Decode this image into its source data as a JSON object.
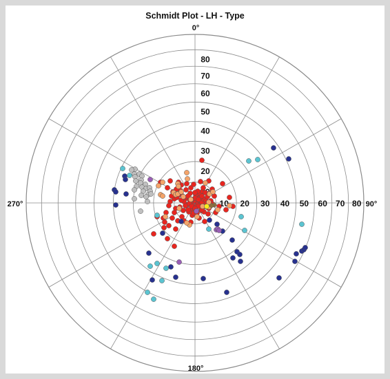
{
  "chart_data": {
    "type": "scatter",
    "projection": "schmidt-lower-hemisphere",
    "title": "Schmidt Plot - LH - Type",
    "direction_labels": {
      "north": "0°",
      "east": "90°",
      "south": "180°",
      "west": "270°"
    },
    "radial_tick_labels": [
      "10",
      "20",
      "30",
      "40",
      "50",
      "60",
      "70",
      "80"
    ],
    "axis_tick_labels": [
      "10",
      "20",
      "30",
      "40",
      "50",
      "60",
      "70",
      "80"
    ],
    "azimuth_gridlines_deg": [
      0,
      30,
      60,
      90,
      120,
      150,
      180,
      210,
      240,
      270,
      300,
      330
    ],
    "radial_rings_deg": [
      10,
      20,
      30,
      40,
      50,
      60,
      70,
      80,
      90
    ],
    "grid": true,
    "legend": "none",
    "series": [
      {
        "color": "#e8251f",
        "points": [
          [
            2,
            2
          ],
          [
            -2,
            3
          ],
          [
            4,
            -2
          ],
          [
            -4,
            -3
          ],
          [
            6,
            4
          ],
          [
            -6,
            2
          ],
          [
            3,
            7
          ],
          [
            -3,
            -7
          ],
          [
            8,
            -3
          ],
          [
            -8,
            5
          ],
          [
            5,
            9
          ],
          [
            -5,
            -9
          ],
          [
            10,
            1
          ],
          [
            -10,
            -2
          ],
          [
            12,
            6
          ],
          [
            -12,
            7
          ],
          [
            1,
            12
          ],
          [
            -1,
            -12
          ],
          [
            14,
            -5
          ],
          [
            -14,
            -4
          ],
          [
            7,
            14
          ],
          [
            -7,
            14
          ],
          [
            16,
            3
          ],
          [
            -16,
            2
          ],
          [
            9,
            -11
          ],
          [
            -9,
            -13
          ],
          [
            18,
            9
          ],
          [
            -18,
            10
          ],
          [
            4,
            17
          ],
          [
            -4,
            -18
          ],
          [
            11,
            17
          ],
          [
            -20,
            4
          ],
          [
            20,
            -8
          ],
          [
            -13,
            19
          ],
          [
            15,
            15
          ],
          [
            -22,
            -6
          ],
          [
            23,
            3
          ],
          [
            -6,
            22
          ],
          [
            6,
            -22
          ],
          [
            -24,
            12
          ],
          [
            2,
            -5
          ],
          [
            -2,
            -15
          ],
          [
            13,
            -13
          ],
          [
            -11,
            9
          ],
          [
            17,
            -1
          ],
          [
            -17,
            -11
          ],
          [
            0,
            7
          ],
          [
            8,
            8
          ],
          [
            -8,
            -1
          ],
          [
            3,
            -15
          ],
          [
            5,
            5
          ],
          [
            -5,
            5
          ],
          [
            5,
            -5
          ],
          [
            -5,
            -5
          ],
          [
            0,
            15
          ],
          [
            0,
            -8
          ],
          [
            10,
            10
          ],
          [
            -10,
            10
          ],
          [
            10,
            -10
          ],
          [
            -10,
            -10
          ],
          [
            21,
            14
          ],
          [
            -21,
            18
          ],
          [
            19,
            -16
          ],
          [
            -19,
            -20
          ],
          [
            26,
            -2
          ],
          [
            -27,
            20
          ],
          [
            -28,
            -8
          ],
          [
            -30,
            6
          ],
          [
            -32,
            16
          ],
          [
            -34,
            10
          ],
          [
            -36,
            2
          ],
          [
            -38,
            -4
          ],
          [
            -25,
            -26
          ],
          [
            -30,
            -14
          ],
          [
            -33,
            -22
          ],
          [
            -40,
            22
          ],
          [
            -44,
            -28
          ],
          [
            -20,
            26
          ],
          [
            -12,
            28
          ],
          [
            -24,
            30
          ],
          [
            -6,
            -28
          ],
          [
            14,
            -27
          ],
          [
            25,
            20
          ],
          [
            30,
            -14
          ],
          [
            -26,
            8
          ],
          [
            -36,
            32
          ],
          [
            -50,
            30
          ],
          [
            -28,
            -38
          ],
          [
            -40,
            -52
          ],
          [
            -60,
            -45
          ],
          [
            -30,
            -63
          ],
          [
            -55,
            -20
          ],
          [
            -45,
            -36
          ],
          [
            -38,
            -33
          ],
          [
            35,
            -5
          ],
          [
            45,
            -10
          ],
          [
            50,
            8
          ],
          [
            55,
            -5
          ],
          [
            10,
            62
          ],
          [
            40,
            28
          ],
          [
            8,
            31
          ],
          [
            -2,
            27
          ],
          [
            12,
            22
          ],
          [
            28,
            10
          ],
          [
            -42,
            -14
          ],
          [
            -46,
            -22
          ],
          [
            -16,
            -26
          ],
          [
            20,
            32
          ]
        ]
      },
      {
        "color": "#27318f",
        "points": [
          [
            -102,
            39
          ],
          [
            -101,
            34
          ],
          [
            -117,
            19
          ],
          [
            -100,
            13
          ],
          [
            -115,
            16
          ],
          [
            -115,
            -3
          ],
          [
            -20,
            -27
          ],
          [
            -47,
            -44
          ],
          [
            -67,
            -73
          ],
          [
            -35,
            -93
          ],
          [
            -62,
            -112
          ],
          [
            12,
            -110
          ],
          [
            46,
            -130
          ],
          [
            21,
            -25
          ],
          [
            32,
            -31
          ],
          [
            40,
            -41
          ],
          [
            54,
            -54
          ],
          [
            61,
            -71
          ],
          [
            65,
            -75
          ],
          [
            55,
            -80
          ],
          [
            66,
            -85
          ],
          [
            145,
            -85
          ],
          [
            147,
            -74
          ],
          [
            155,
            -70
          ],
          [
            158,
            -68
          ],
          [
            160,
            -65
          ],
          [
            122,
            -109
          ],
          [
            114,
            80
          ],
          [
            136,
            64
          ],
          [
            -28,
            -108
          ]
        ]
      },
      {
        "color": "#c0c0c0",
        "points": [
          [
            -87,
            49
          ],
          [
            -88,
            42
          ],
          [
            -92,
            48
          ],
          [
            -81,
            42
          ],
          [
            -87,
            38
          ],
          [
            -77,
            39
          ],
          [
            -78,
            33
          ],
          [
            -86,
            32
          ],
          [
            -79,
            29
          ],
          [
            -72,
            27
          ],
          [
            -85,
            24
          ],
          [
            -77,
            23
          ],
          [
            -88,
            19
          ],
          [
            -71,
            21
          ],
          [
            -75,
            17
          ],
          [
            -66,
            22
          ],
          [
            -65,
            17
          ],
          [
            -78,
            11
          ],
          [
            -68,
            12
          ],
          [
            -71,
            9
          ],
          [
            -64,
            13
          ],
          [
            -69,
            2
          ],
          [
            -79,
            -12
          ],
          [
            -88,
            6
          ]
        ]
      },
      {
        "color": "#f4a46a",
        "points": [
          [
            -50,
            12
          ],
          [
            -47,
            30
          ],
          [
            -47,
            10
          ],
          [
            -31,
            15
          ],
          [
            -28,
            12
          ],
          [
            -25,
            28
          ],
          [
            -12,
            44
          ],
          [
            -11,
            35
          ],
          [
            -17,
            9
          ],
          [
            15,
            29
          ],
          [
            21,
            13
          ],
          [
            26,
            16
          ],
          [
            -25,
            13
          ],
          [
            -20,
            16
          ],
          [
            -8,
            -32
          ],
          [
            3,
            -20
          ],
          [
            33,
            -10
          ],
          [
            50,
            -4
          ],
          [
            -12,
            -29
          ],
          [
            -23,
            -8
          ],
          [
            -43,
            -20
          ],
          [
            -53,
            25
          ],
          [
            20,
            1
          ],
          [
            11,
            -5
          ],
          [
            -6,
            5
          ],
          [
            -24,
            24
          ],
          [
            20,
            -6
          ]
        ]
      },
      {
        "color": "#5bc4d1",
        "points": [
          [
            -55,
            -18
          ],
          [
            -65,
            -92
          ],
          [
            -55,
            -88
          ],
          [
            -48,
            -113
          ],
          [
            -69,
            -130
          ],
          [
            -60,
            -140
          ],
          [
            67,
            -20
          ],
          [
            72,
            -40
          ],
          [
            20,
            -38
          ],
          [
            155,
            -31
          ],
          [
            91,
            63
          ],
          [
            78,
            61
          ],
          [
            -42,
            -95
          ],
          [
            -105,
            50
          ],
          [
            -95,
            40
          ]
        ]
      },
      {
        "color": "#9a5fb6",
        "points": [
          [
            -65,
            34
          ],
          [
            2,
            -12
          ],
          [
            -23,
            -86
          ],
          [
            31,
            -39
          ],
          [
            33,
            -38
          ],
          [
            35,
            -40
          ]
        ]
      },
      {
        "color": "#8b6f3e",
        "points": [
          [
            28,
            -3
          ],
          [
            24,
            -4
          ]
        ]
      },
      {
        "color": "#f7ec1d",
        "points": [
          [
            17,
            -5
          ]
        ]
      }
    ]
  }
}
